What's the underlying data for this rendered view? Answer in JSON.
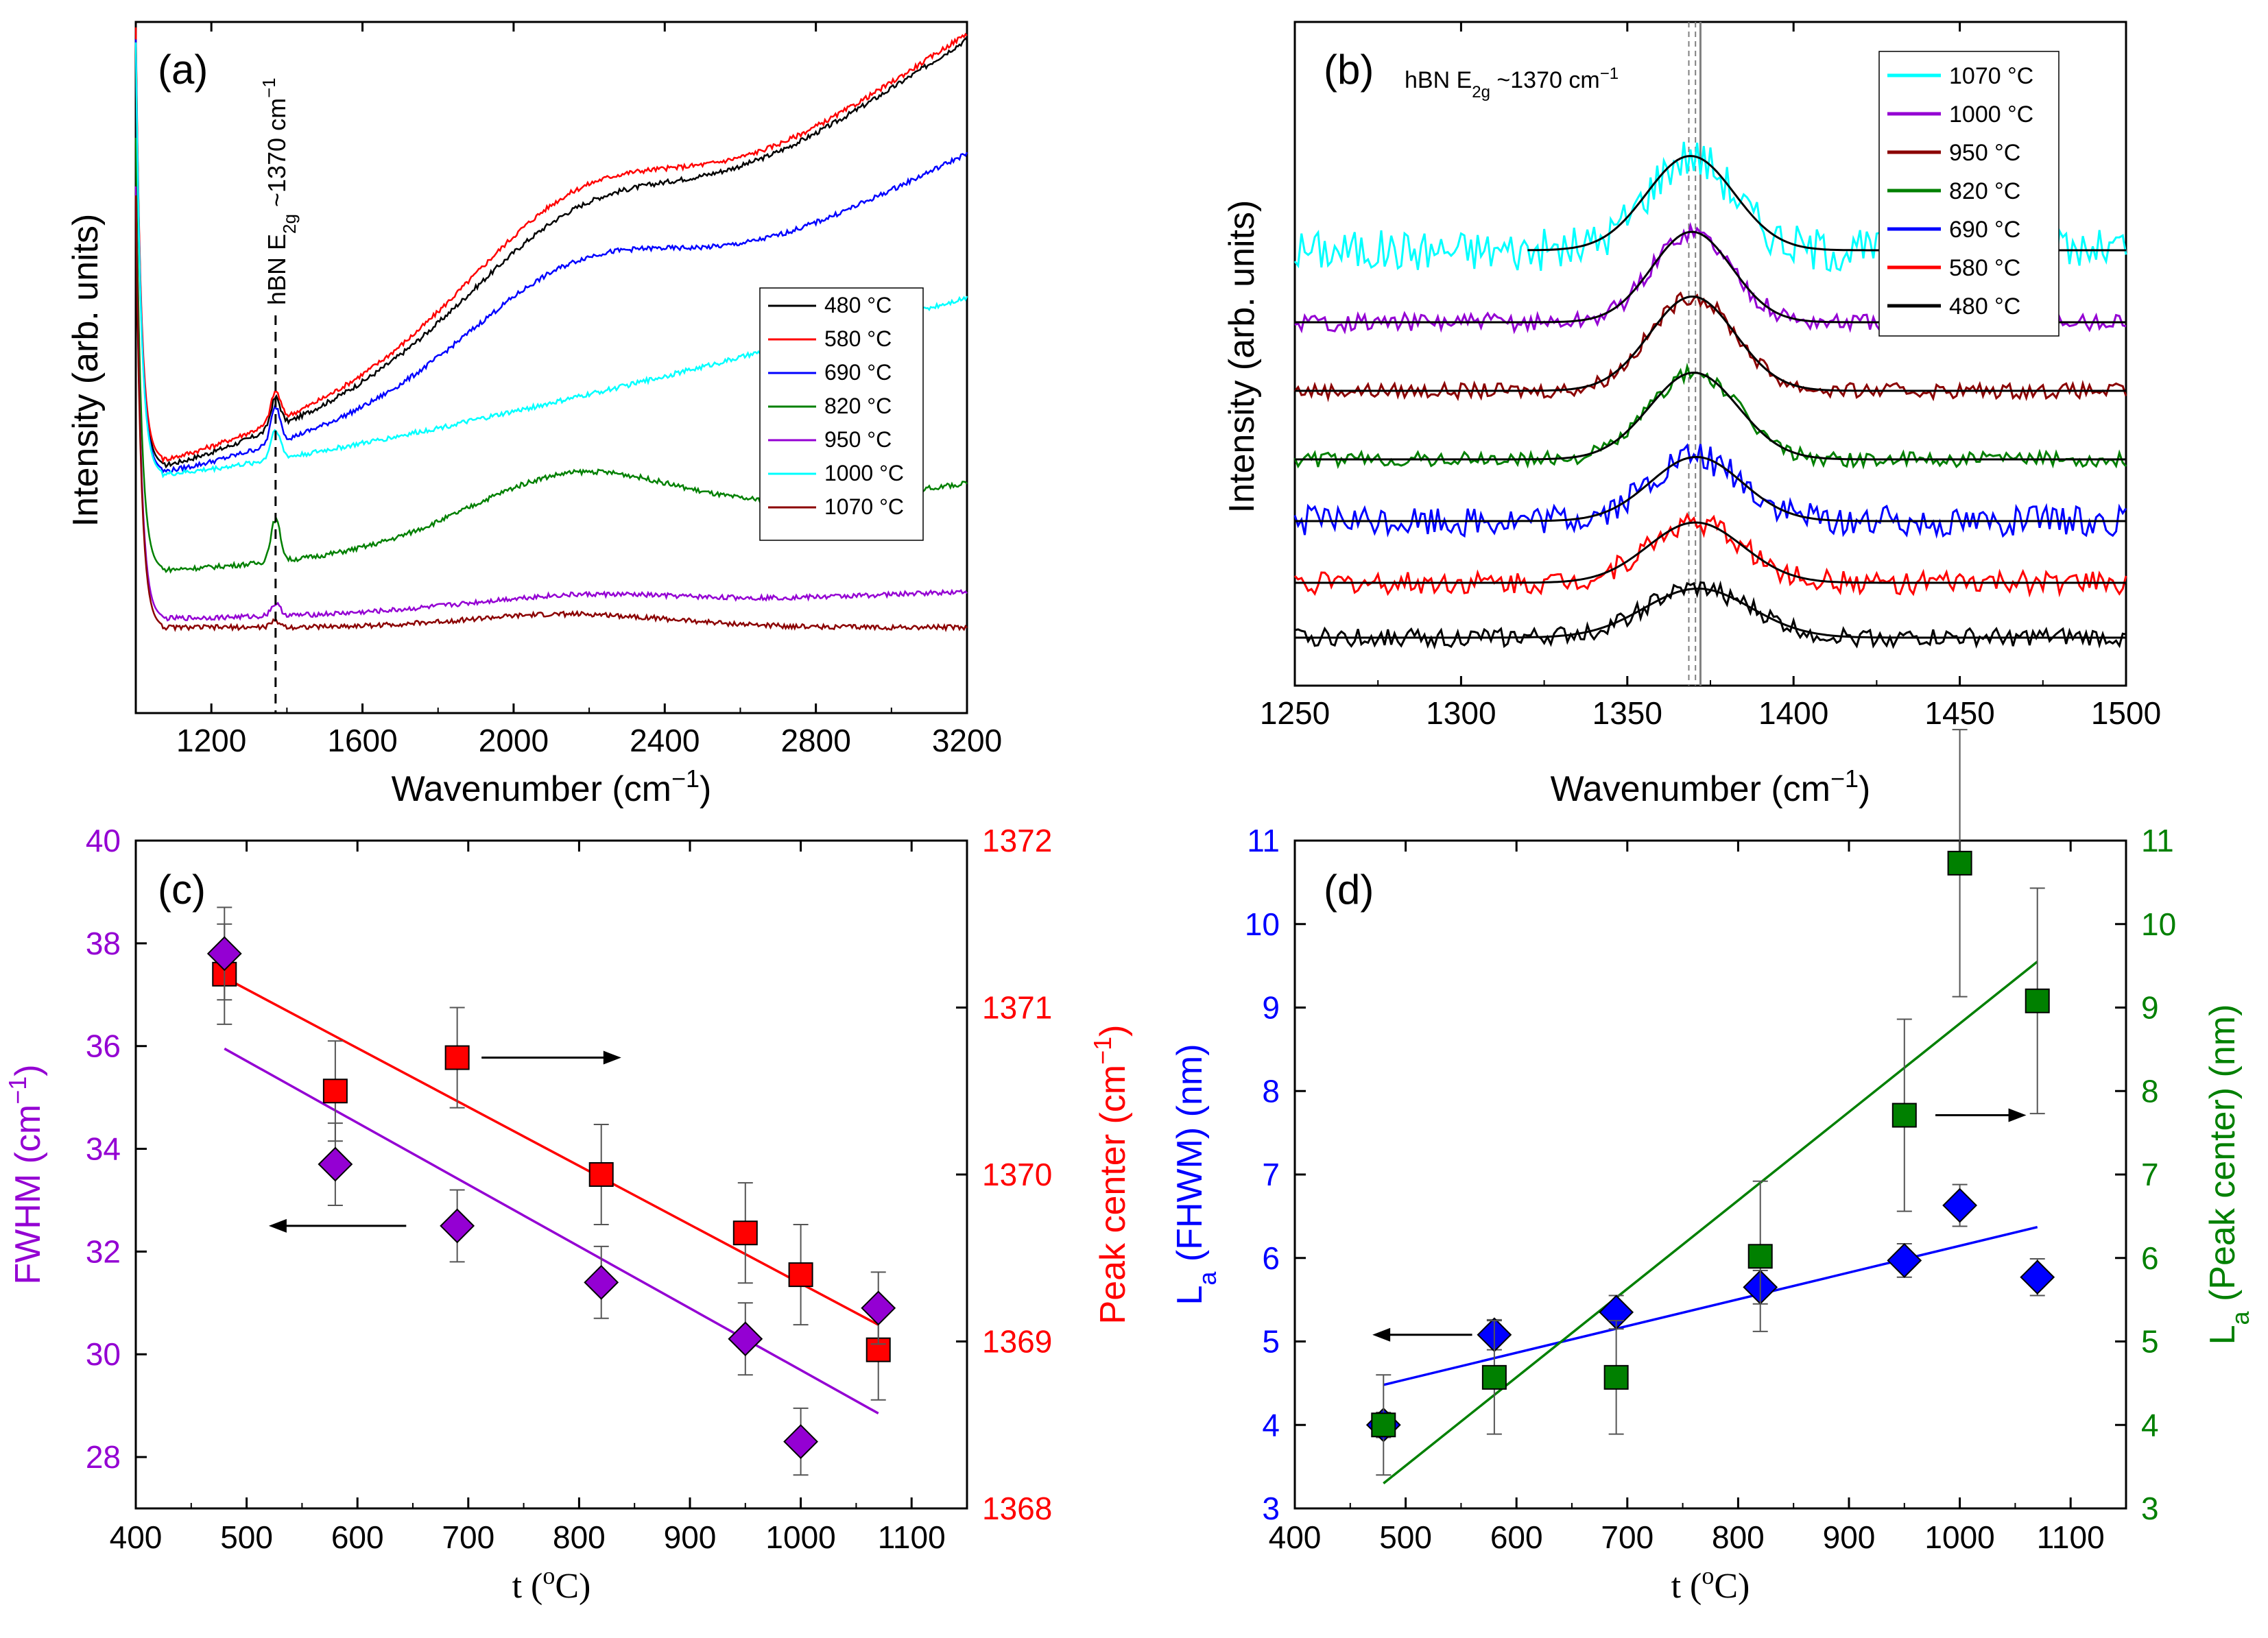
{
  "chart_data": [
    {
      "panel": "(a)",
      "type": "line",
      "xlabel": "Wavenumber (cm−1)",
      "ylabel": "Intensity (arb. units)",
      "xlim": [
        1000,
        3200
      ],
      "xticks": [
        1200,
        1600,
        2000,
        2400,
        2800,
        3200
      ],
      "annotation": "hBN E2g ~1370 cm−1",
      "annotation_x": 1370,
      "legend": [
        "480 °C",
        "580 °C",
        "690 °C",
        "820 °C",
        "950 °C",
        "1000 °C",
        "1070 °C"
      ],
      "series": [
        {
          "name": "480 °C",
          "color": "#000000",
          "baseline": 0.27,
          "end": 0.98,
          "hump": 0.12,
          "peak": 0.05
        },
        {
          "name": "580 °C",
          "color": "#ff0000",
          "baseline": 0.28,
          "end": 0.99,
          "hump": 0.14,
          "peak": 0.05
        },
        {
          "name": "690 °C",
          "color": "#0000ff",
          "baseline": 0.26,
          "end": 0.79,
          "hump": 0.12,
          "peak": 0.06
        },
        {
          "name": "820 °C",
          "color": "#008000",
          "baseline": 0.096,
          "end": 0.24,
          "hump": 0.1,
          "peak": 0.07
        },
        {
          "name": "950 °C",
          "color": "#9400d3",
          "baseline": 0.015,
          "end": 0.06,
          "hump": 0.02,
          "peak": 0.02
        },
        {
          "name": "1000 °C",
          "color": "#00ffff",
          "baseline": 0.255,
          "end": 0.55,
          "hump": 0.0,
          "peak": 0.05
        },
        {
          "name": "1070 °C",
          "color": "#8b0000",
          "baseline": 0.0,
          "end": 0.0,
          "hump": 0.022,
          "peak": 0.01
        }
      ]
    },
    {
      "panel": "(b)",
      "type": "line",
      "xlabel": "Wavenumber (cm−1)",
      "ylabel": "Intensity (arb. units)",
      "xlim": [
        1250,
        1500
      ],
      "xticks": [
        1250,
        1300,
        1350,
        1400,
        1450,
        1500
      ],
      "annotation": "hBN E2g ~1370 cm−1",
      "legend": [
        "1070 °C",
        "1000 °C",
        "950 °C",
        "820 °C",
        "690 °C",
        "580 °C",
        "480 °C"
      ],
      "series": [
        {
          "name": "1070 °C",
          "color": "#00ffff",
          "center": 1369,
          "fwhm": 30.9,
          "offset": 6,
          "amp": 1.25,
          "noise": 0.28
        },
        {
          "name": "1000 °C",
          "color": "#9400d3",
          "center": 1369.4,
          "fwhm": 28.3,
          "offset": 5,
          "amp": 1.2,
          "noise": 0.12
        },
        {
          "name": "950 °C",
          "color": "#8b0000",
          "center": 1369.6,
          "fwhm": 30.3,
          "offset": 4,
          "amp": 1.25,
          "noise": 0.1
        },
        {
          "name": "820 °C",
          "color": "#008000",
          "center": 1370.0,
          "fwhm": 31.4,
          "offset": 3,
          "amp": 1.15,
          "noise": 0.1
        },
        {
          "name": "690 °C",
          "color": "#0000ff",
          "center": 1370.7,
          "fwhm": 32.5,
          "offset": 2,
          "amp": 0.85,
          "noise": 0.2
        },
        {
          "name": "580 °C",
          "color": "#ff0000",
          "center": 1370.5,
          "fwhm": 33.7,
          "offset": 1,
          "amp": 0.8,
          "noise": 0.15
        },
        {
          "name": "480 °C",
          "color": "#000000",
          "center": 1371.2,
          "fwhm": 37.8,
          "offset": 0,
          "amp": 0.65,
          "noise": 0.12
        }
      ]
    },
    {
      "panel": "(c)",
      "type": "scatter",
      "xlabel": "t (°C)",
      "ylabel_left": "FWHM (cm−1)",
      "ylabel_right": "Peak center (cm−1)",
      "xlim": [
        400,
        1150
      ],
      "xticks": [
        400,
        500,
        600,
        700,
        800,
        900,
        1000,
        1100
      ],
      "ylim_left": [
        27,
        40
      ],
      "yticks_left": [
        28,
        30,
        32,
        34,
        36,
        38,
        40
      ],
      "ylim_right": [
        1368,
        1372
      ],
      "yticks_right": [
        1368,
        1369,
        1370,
        1371,
        1372
      ],
      "x": [
        480,
        580,
        690,
        820,
        950,
        1000,
        1070
      ],
      "series": [
        {
          "name": "FWHM",
          "axis": "left",
          "marker": "diamond",
          "color": "#9400d3",
          "values": [
            37.8,
            33.7,
            32.5,
            31.4,
            30.3,
            28.3,
            30.9
          ],
          "errors": [
            0.9,
            0.8,
            0.7,
            0.7,
            0.7,
            0.65,
            0.7
          ],
          "fit": [
            [
              480,
              35.95
            ],
            [
              1070,
              28.85
            ]
          ]
        },
        {
          "name": "Peak center",
          "axis": "right",
          "marker": "square",
          "color": "#ff0000",
          "values": [
            1371.2,
            1370.5,
            1370.7,
            1370.0,
            1369.65,
            1369.4,
            1368.95
          ],
          "errors": [
            0.3,
            0.3,
            0.3,
            0.3,
            0.3,
            0.3,
            0.3
          ],
          "fit": [
            [
              480,
              1371.18
            ],
            [
              1070,
              1369.1
            ]
          ]
        }
      ]
    },
    {
      "panel": "(d)",
      "type": "scatter",
      "xlabel": "t (°C)",
      "ylabel_left": "La (FHWM) (nm)",
      "ylabel_right": "La (Peak center) (nm)",
      "xlim": [
        400,
        1150
      ],
      "xticks": [
        400,
        500,
        600,
        700,
        800,
        900,
        1000,
        1100
      ],
      "ylim_left": [
        3,
        11
      ],
      "yticks_left": [
        3,
        4,
        5,
        6,
        7,
        8,
        9,
        10,
        11
      ],
      "ylim_right": [
        3,
        11
      ],
      "yticks_right": [
        3,
        4,
        5,
        6,
        7,
        8,
        9,
        10,
        11
      ],
      "x": [
        480,
        580,
        690,
        820,
        950,
        1000,
        1070
      ],
      "series": [
        {
          "name": "La (FHWM)",
          "axis": "left",
          "marker": "diamond",
          "color": "#0000ff",
          "values": [
            4.0,
            5.08,
            5.35,
            5.65,
            5.97,
            6.63,
            5.77
          ],
          "errors": [
            0.15,
            0.18,
            0.2,
            0.2,
            0.2,
            0.25,
            0.22
          ],
          "fit": [
            [
              480,
              4.48
            ],
            [
              1070,
              6.37
            ]
          ]
        },
        {
          "name": "La (Peak center)",
          "axis": "right",
          "marker": "square",
          "color": "#008000",
          "values": [
            4.0,
            4.57,
            4.57,
            6.02,
            7.71,
            10.73,
            9.08
          ],
          "errors": [
            0.6,
            0.68,
            0.68,
            0.9,
            1.15,
            1.6,
            1.35
          ],
          "fit": [
            [
              480,
              3.3
            ],
            [
              1070,
              9.55
            ]
          ]
        }
      ]
    }
  ],
  "labels": {
    "a": {
      "panel": "(a)",
      "ylabel": "Intensity (arb. units)",
      "xlabel_main": "Wavenumber (cm",
      "xlabel_sup": "−1",
      "xlabel_close": ")",
      "annot_pre": "hBN E",
      "annot_sub": "2g",
      "annot_post": " ~1370 cm",
      "annot_sup": "−1",
      "legend": [
        "480 °C",
        "580 °C",
        "690 °C",
        "820 °C",
        "950 °C",
        "1000 °C",
        "1070 °C"
      ],
      "xticks": [
        "1200",
        "1600",
        "2000",
        "2400",
        "2800",
        "3200"
      ]
    },
    "b": {
      "panel": "(b)",
      "ylabel": "Intensity (arb. units)",
      "xlabel_main": "Wavenumber (cm",
      "xlabel_sup": "−1",
      "xlabel_close": ")",
      "annot_pre": "hBN E",
      "annot_sub": "2g",
      "annot_post": " ~1370 cm",
      "annot_sup": "−1",
      "legend": [
        "1070 °C",
        "1000 °C",
        "950 °C",
        "820 °C",
        "690 °C",
        "580 °C",
        "480 °C"
      ],
      "xticks": [
        "1250",
        "1300",
        "1350",
        "1400",
        "1450",
        "1500"
      ]
    },
    "c": {
      "panel": "(c)",
      "ylabel_left_main": "FWHM (cm",
      "ylabel_left_sup": "−1",
      "ylabel_left_close": ")",
      "ylabel_right_main": "Peak center (cm",
      "ylabel_right_sup": "−1",
      "ylabel_right_close": ")",
      "xlabel_main": "t (",
      "xlabel_sup": "o",
      "xlabel_close": "C)",
      "xticks": [
        "400",
        "500",
        "600",
        "700",
        "800",
        "900",
        "1000",
        "1100"
      ],
      "yticks_left": [
        "28",
        "30",
        "32",
        "34",
        "36",
        "38",
        "40"
      ],
      "yticks_right": [
        "1368",
        "1369",
        "1370",
        "1371",
        "1372"
      ]
    },
    "d": {
      "panel": "(d)",
      "ylabel_left_main": "L",
      "ylabel_left_sub": "a",
      "ylabel_left_rest": " (FHWM) (nm)",
      "ylabel_right_main": "L",
      "ylabel_right_sub": "a",
      "ylabel_right_rest": " (Peak center) (nm)",
      "xlabel_main": "t (",
      "xlabel_sup": "o",
      "xlabel_close": "C)",
      "xticks": [
        "400",
        "500",
        "600",
        "700",
        "800",
        "900",
        "1000",
        "1100"
      ],
      "yticks_left": [
        "3",
        "4",
        "5",
        "6",
        "7",
        "8",
        "9",
        "10",
        "11"
      ],
      "yticks_right": [
        "3",
        "4",
        "5",
        "6",
        "7",
        "8",
        "9",
        "10",
        "11"
      ]
    }
  }
}
